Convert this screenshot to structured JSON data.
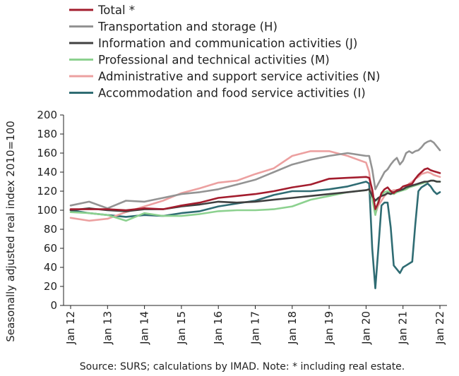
{
  "chart_data": {
    "type": "line",
    "ylabel": "Seasonally adjusted real index 2010=100",
    "ylim": [
      0,
      200
    ],
    "y_ticks": [
      "0",
      "20",
      "40",
      "60",
      "80",
      "100",
      "120",
      "140",
      "160",
      "180",
      "200"
    ],
    "x_tick_labels": [
      "Jan 12",
      "Jan 13",
      "Jan 14",
      "Jan 15",
      "Jan 16",
      "Jan 17",
      "Jan 18",
      "Jan 19",
      "Jan 20",
      "Jan 21",
      "Jan 22"
    ],
    "x": [
      "2012-01",
      "2012-07",
      "2013-01",
      "2013-07",
      "2014-01",
      "2014-07",
      "2015-01",
      "2015-07",
      "2016-01",
      "2016-07",
      "2017-01",
      "2017-07",
      "2018-01",
      "2018-07",
      "2019-01",
      "2019-07",
      "2020-01",
      "2020-02",
      "2020-03",
      "2020-04",
      "2020-05",
      "2020-06",
      "2020-07",
      "2020-08",
      "2020-09",
      "2020-10",
      "2020-11",
      "2020-12",
      "2021-01",
      "2021-02",
      "2021-03",
      "2021-04",
      "2021-05",
      "2021-06",
      "2021-07",
      "2021-08",
      "2021-09",
      "2021-10",
      "2021-11",
      "2021-12",
      "2022-01"
    ],
    "grid": false,
    "legend_placement": "top-left",
    "series": [
      {
        "name": "Total *",
        "color": "#a31d2e",
        "values": [
          101,
          101,
          101,
          100,
          102,
          101,
          105,
          108,
          113,
          115,
          117,
          120,
          124,
          127,
          133,
          134,
          135,
          134,
          122,
          101,
          108,
          118,
          122,
          124,
          120,
          118,
          121,
          122,
          125,
          126,
          127,
          128,
          133,
          137,
          140,
          143,
          144,
          142,
          141,
          140,
          139
        ]
      },
      {
        "name": "Transportation and storage (H)",
        "color": "#939393",
        "values": [
          105,
          109,
          102,
          110,
          109,
          113,
          117,
          119,
          122,
          127,
          132,
          140,
          148,
          153,
          157,
          160,
          157,
          157,
          143,
          122,
          128,
          134,
          140,
          143,
          148,
          152,
          155,
          148,
          152,
          160,
          162,
          160,
          162,
          163,
          166,
          170,
          172,
          173,
          171,
          167,
          163
        ]
      },
      {
        "name": "Information and communication activities (J)",
        "color": "#404040",
        "values": [
          100,
          102,
          100,
          99,
          101,
          101,
          104,
          106,
          109,
          108,
          109,
          111,
          113,
          115,
          117,
          119,
          121,
          122,
          115,
          110,
          113,
          115,
          116,
          118,
          117,
          119,
          120,
          121,
          122,
          124,
          125,
          126,
          127,
          128,
          129,
          130,
          130,
          131,
          131,
          130,
          130
        ]
      },
      {
        "name": "Professional and technical activities (M)",
        "color": "#8cd18f",
        "values": [
          98,
          97,
          95,
          89,
          97,
          94,
          94,
          96,
          99,
          100,
          100,
          101,
          104,
          111,
          115,
          119,
          121,
          122,
          112,
          95,
          110,
          116,
          119,
          120,
          118,
          117,
          119,
          120,
          121,
          122,
          124,
          125,
          126,
          127,
          128,
          129,
          130,
          131,
          131,
          130,
          130
        ]
      },
      {
        "name": "Administrative and support service activities (N)",
        "color": "#eca0a0",
        "values": [
          92,
          89,
          91,
          98,
          104,
          110,
          118,
          123,
          129,
          131,
          138,
          144,
          157,
          162,
          162,
          157,
          150,
          140,
          115,
          96,
          105,
          110,
          115,
          118,
          120,
          121,
          121,
          120,
          122,
          125,
          128,
          130,
          133,
          135,
          138,
          139,
          140,
          139,
          137,
          136,
          135
        ]
      },
      {
        "name": "Accommodation and food service activities (I)",
        "color": "#2f6c73",
        "values": [
          100,
          97,
          95,
          93,
          95,
          94,
          97,
          99,
          104,
          107,
          110,
          116,
          120,
          120,
          122,
          125,
          130,
          128,
          60,
          18,
          60,
          105,
          108,
          108,
          82,
          42,
          38,
          34,
          40,
          42,
          44,
          46,
          85,
          120,
          124,
          126,
          128,
          125,
          120,
          117,
          119
        ]
      }
    ]
  },
  "source_note": "Source:  SURS; calculations by IMAD. Note: * including real estate."
}
